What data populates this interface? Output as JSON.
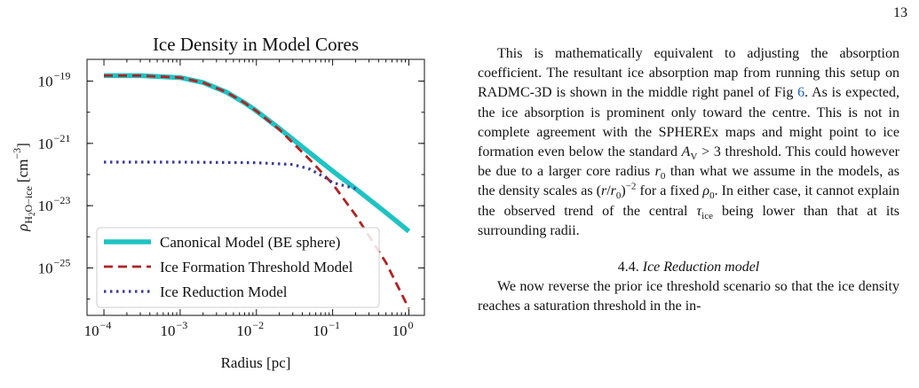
{
  "page_number": "13",
  "chart_data": {
    "type": "line",
    "title": "Ice Density in Model Cores",
    "xlabel": "Radius [pc]",
    "ylabel": "ρH2O−ice [cm−3]",
    "x_scale": "log",
    "y_scale": "log",
    "xlim": [
      6e-05,
      1.6
    ],
    "ylim": [
      3e-27,
      5e-19
    ],
    "x_ticks": [
      {
        "v": 0.0001,
        "exp": "−4"
      },
      {
        "v": 0.001,
        "exp": "−3"
      },
      {
        "v": 0.01,
        "exp": "−2"
      },
      {
        "v": 0.1,
        "exp": "−1"
      },
      {
        "v": 1,
        "exp": "0"
      }
    ],
    "y_ticks": [
      {
        "v": 1e-19,
        "exp": "−19"
      },
      {
        "v": 1e-21,
        "exp": "−21"
      },
      {
        "v": 1e-23,
        "exp": "−23"
      },
      {
        "v": 1e-25,
        "exp": "−25"
      }
    ],
    "legend_position": "lower-left",
    "series": [
      {
        "name": "Canonical Model (BE sphere)",
        "color": "#1fc3c3",
        "style": "solid",
        "x": [
          0.0001,
          0.0003,
          0.001,
          0.002,
          0.004,
          0.007,
          0.01,
          0.02,
          0.05,
          0.1,
          0.2,
          0.5,
          1.0
        ],
        "y": [
          1.5e-19,
          1.5e-19,
          1.3e-19,
          9e-20,
          4.5e-20,
          2e-20,
          1.1e-20,
          3e-21,
          5e-22,
          1.3e-22,
          3.5e-23,
          6e-24,
          1.5e-24
        ]
      },
      {
        "name": "Ice Formation Threshold Model",
        "color": "#b22222",
        "style": "dashed",
        "x": [
          0.0001,
          0.0003,
          0.001,
          0.002,
          0.004,
          0.007,
          0.01,
          0.02,
          0.05,
          0.1,
          0.2,
          0.5,
          1.0
        ],
        "y": [
          1.5e-19,
          1.5e-19,
          1.3e-19,
          9e-20,
          4.5e-20,
          2e-20,
          1.1e-20,
          2.8e-21,
          3e-22,
          5e-23,
          5e-24,
          1.5e-25,
          5e-27
        ]
      },
      {
        "name": "Ice Reduction Model",
        "color": "#3a3a9a",
        "style": "dotted",
        "x": [
          0.0001,
          0.001,
          0.01,
          0.03,
          0.05,
          0.08,
          0.1,
          0.2
        ],
        "y": [
          2.5e-22,
          2.5e-22,
          2.4e-22,
          2.1e-22,
          1.5e-22,
          8e-23,
          5.5e-23,
          3.5e-23
        ]
      }
    ]
  },
  "body": {
    "paragraph1": [
      {
        "t": "This is mathematically equivalent to adjusting the absorption coefficient. The resultant ice absorption map from running this setup on RADMC-3D is shown in the middle right panel of Fig "
      },
      {
        "t": "6",
        "link": true
      },
      {
        "t": ". As is expected, the ice absorption is prominent only toward the centre. This is not in complete agreement with the SPHEREx maps and might point to ice formation even below the standard "
      },
      {
        "t": "A",
        "it": true
      },
      {
        "t": "V",
        "sub": true
      },
      {
        "t": " > 3 threshold. This could however be due to a larger core radius "
      },
      {
        "t": "r",
        "it": true
      },
      {
        "t": "0",
        "sub": true
      },
      {
        "t": " than what we assume in the models, as the density scales as ("
      },
      {
        "t": "r",
        "it": true
      },
      {
        "t": "/"
      },
      {
        "t": "r",
        "it": true
      },
      {
        "t": "0",
        "sub": true
      },
      {
        "t": ")"
      },
      {
        "t": "−2",
        "sup": true
      },
      {
        "t": " for a fixed "
      },
      {
        "t": "ρ",
        "it": true
      },
      {
        "t": "0",
        "sub": true
      },
      {
        "t": ". In either case, it cannot explain the observed trend of the central "
      },
      {
        "t": "τ",
        "it": true
      },
      {
        "t": "ice",
        "sub": true
      },
      {
        "t": " being lower than that at its surrounding radii."
      }
    ],
    "section_number": "4.4.",
    "section_title": "Ice Reduction model",
    "paragraph2": "We now reverse the prior ice threshold scenario so that the ice density reaches a saturation threshold in the in-"
  }
}
